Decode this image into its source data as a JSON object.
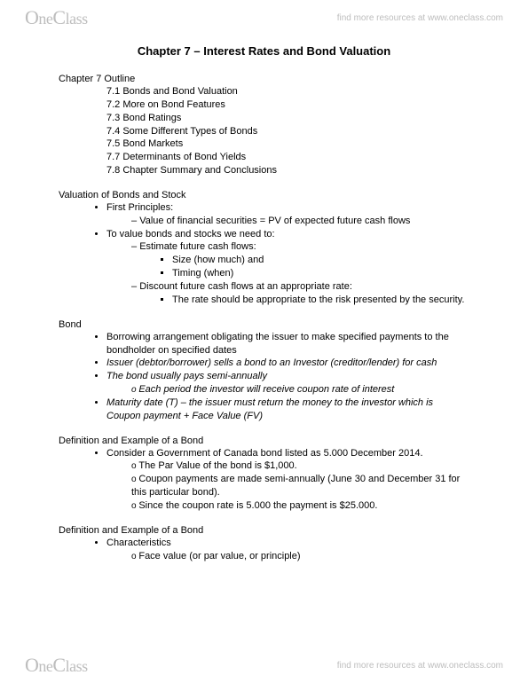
{
  "watermark": {
    "logo_html": "OneClass",
    "resources": "find more resources at www.oneclass.com"
  },
  "title": "Chapter 7 – Interest Rates and Bond Valuation",
  "outline": {
    "heading": "Chapter 7 Outline",
    "items": [
      "7.1 Bonds and Bond Valuation",
      "7.2 More on Bond Features",
      "7.3 Bond Ratings",
      "7.4 Some Different Types of Bonds",
      "7.5 Bond Markets",
      "7.7 Determinants of Bond Yields",
      "7.8 Chapter Summary and Conclusions"
    ]
  },
  "valuation": {
    "heading": "Valuation of Bonds and Stock",
    "b1_0": "First Principles:",
    "b2_0": "Value of financial securities = PV of expected future cash flows",
    "b1_1": "To value bonds and stocks we need to:",
    "b2_1": "Estimate future cash flows:",
    "b3_0": "Size (how much) and",
    "b3_1": "Timing (when)",
    "b2_2": "Discount future cash flows at an appropriate rate:",
    "b3_2": "The rate should be appropriate to the risk presented by the security."
  },
  "bond": {
    "heading": "Bond",
    "b1_0": "Borrowing arrangement obligating the issuer to make specified payments to the bondholder on specified dates",
    "b1_1": "Issuer (debtor/borrower) sells a bond to an Investor (creditor/lender) for cash",
    "b1_2": "The bond usually pays semi-annually",
    "b2o_0": "Each period the investor will receive coupon rate of interest",
    "b1_3": "Maturity date (T) – the issuer must return the money to the investor which is Coupon payment + Face Value (FV)"
  },
  "def1": {
    "heading": "Definition and Example of a Bond",
    "b1_0": "Consider a Government of Canada bond listed as 5.000 December 2014.",
    "b2o_0": "The Par Value of the bond is $1,000.",
    "b2o_1": "Coupon payments are made semi-annually (June 30 and December 31 for this particular bond).",
    "b2o_2": "Since the coupon rate is 5.000 the payment is $25.000."
  },
  "def2": {
    "heading": "Definition and Example of a Bond",
    "b1_0": "Characteristics",
    "b2o_0": "Face value (or par value, or principle)"
  }
}
